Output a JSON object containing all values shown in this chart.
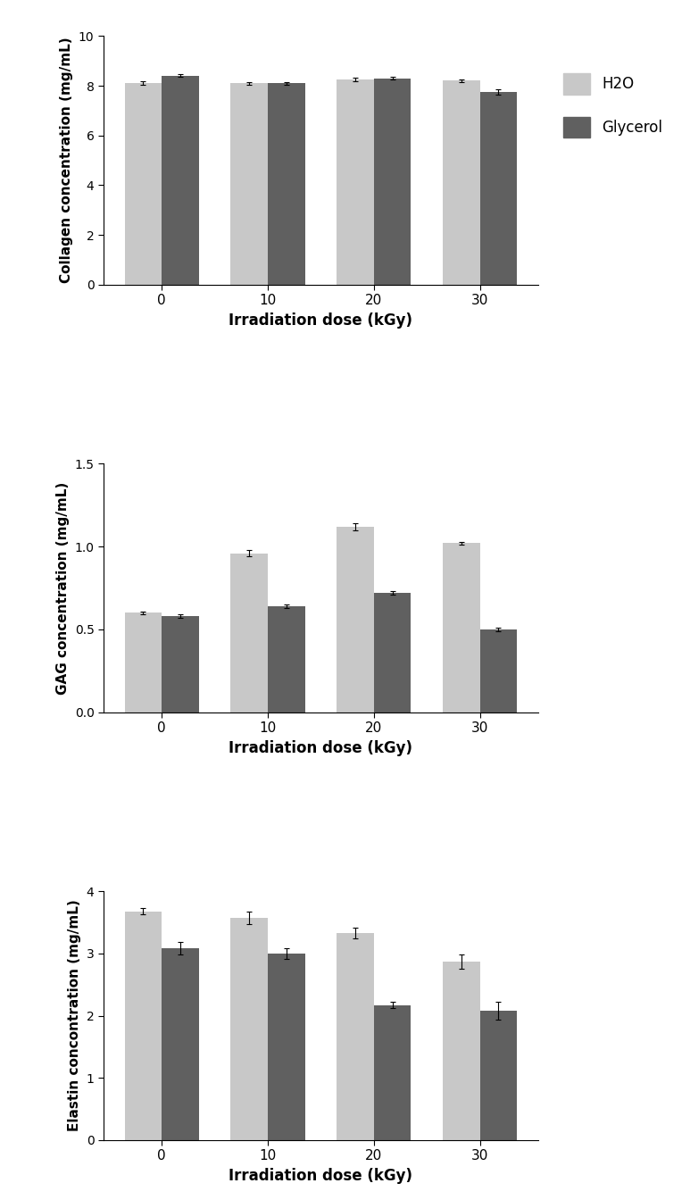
{
  "doses": [
    0,
    10,
    20,
    30
  ],
  "dose_labels": [
    "0",
    "10",
    "20",
    "30"
  ],
  "collagen_h2o": [
    8.1,
    8.1,
    8.25,
    8.2
  ],
  "collagen_glycerol": [
    8.4,
    8.1,
    8.3,
    7.75
  ],
  "collagen_h2o_err": [
    0.08,
    0.06,
    0.06,
    0.06
  ],
  "collagen_glycerol_err": [
    0.05,
    0.05,
    0.05,
    0.1
  ],
  "collagen_ylabel": "Collagen concentration (mg/mL)",
  "collagen_ylim": [
    0,
    10
  ],
  "collagen_yticks": [
    0,
    2,
    4,
    6,
    8,
    10
  ],
  "gag_h2o": [
    0.6,
    0.96,
    1.12,
    1.02
  ],
  "gag_glycerol": [
    0.58,
    0.64,
    0.72,
    0.5
  ],
  "gag_h2o_err": [
    0.01,
    0.02,
    0.02,
    0.01
  ],
  "gag_glycerol_err": [
    0.01,
    0.01,
    0.01,
    0.01
  ],
  "gag_ylabel": "GAG concentration (mg/mL)",
  "gag_ylim": [
    0,
    1.5
  ],
  "gag_yticks": [
    0,
    0.5,
    1.0,
    1.5
  ],
  "elastin_h2o": [
    3.68,
    3.58,
    3.33,
    2.87
  ],
  "elastin_glycerol": [
    3.08,
    3.0,
    2.17,
    2.08
  ],
  "elastin_h2o_err": [
    0.05,
    0.1,
    0.08,
    0.12
  ],
  "elastin_glycerol_err": [
    0.1,
    0.08,
    0.05,
    0.15
  ],
  "elastin_ylabel": "Elastin concontration (mg/mL)",
  "elastin_ylim": [
    0,
    4
  ],
  "elastin_yticks": [
    0,
    1,
    2,
    3,
    4
  ],
  "xlabel": "Irradiation dose (kGy)",
  "color_h2o": "#c8c8c8",
  "color_glycerol": "#606060",
  "legend_labels": [
    "H2O",
    "Glycerol"
  ],
  "bar_width": 0.35,
  "figsize": [
    7.73,
    13.44
  ],
  "dpi": 100,
  "background_color": "#ffffff"
}
